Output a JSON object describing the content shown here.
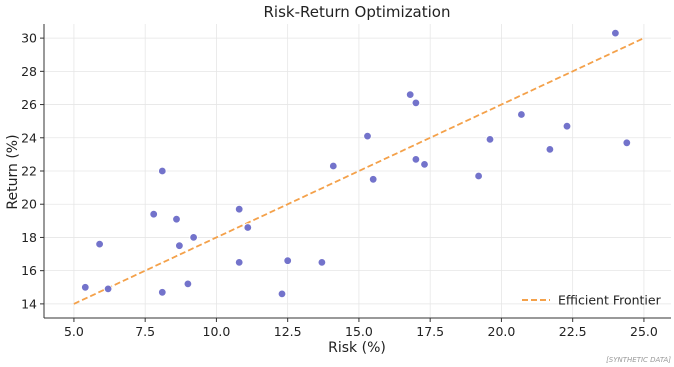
{
  "chart_data": {
    "type": "scatter",
    "title": "Risk-Return Optimization",
    "xlabel": "Risk (%)",
    "ylabel": "Return (%)",
    "xlim": [
      3.95,
      25.95
    ],
    "ylim": [
      13.15,
      30.85
    ],
    "x_ticks": [
      5.0,
      7.5,
      10.0,
      12.5,
      15.0,
      17.5,
      20.0,
      22.5,
      25.0
    ],
    "x_tick_labels": [
      "5.0",
      "7.5",
      "10.0",
      "12.5",
      "15.0",
      "17.5",
      "20.0",
      "22.5",
      "25.0"
    ],
    "y_ticks": [
      14,
      16,
      18,
      20,
      22,
      24,
      26,
      28,
      30
    ],
    "y_tick_labels": [
      "14",
      "16",
      "18",
      "20",
      "22",
      "24",
      "26",
      "28",
      "30"
    ],
    "grid": true,
    "legend_position": "bottom-right",
    "colors": {
      "points": "#6b6bc8",
      "frontier": "#f4a14a"
    },
    "points": [
      {
        "x": 5.4,
        "y": 15.0
      },
      {
        "x": 5.9,
        "y": 17.6
      },
      {
        "x": 6.2,
        "y": 14.9
      },
      {
        "x": 7.8,
        "y": 19.4
      },
      {
        "x": 8.1,
        "y": 22.0
      },
      {
        "x": 8.1,
        "y": 14.7
      },
      {
        "x": 8.6,
        "y": 19.1
      },
      {
        "x": 8.7,
        "y": 17.5
      },
      {
        "x": 9.0,
        "y": 15.2
      },
      {
        "x": 9.2,
        "y": 18.0
      },
      {
        "x": 10.8,
        "y": 19.7
      },
      {
        "x": 10.8,
        "y": 16.5
      },
      {
        "x": 11.1,
        "y": 18.6
      },
      {
        "x": 12.3,
        "y": 14.6
      },
      {
        "x": 12.5,
        "y": 16.6
      },
      {
        "x": 13.7,
        "y": 16.5
      },
      {
        "x": 14.1,
        "y": 22.3
      },
      {
        "x": 15.3,
        "y": 24.1
      },
      {
        "x": 15.5,
        "y": 21.5
      },
      {
        "x": 16.8,
        "y": 26.6
      },
      {
        "x": 17.0,
        "y": 22.7
      },
      {
        "x": 17.0,
        "y": 26.1
      },
      {
        "x": 17.3,
        "y": 22.4
      },
      {
        "x": 19.2,
        "y": 21.7
      },
      {
        "x": 19.6,
        "y": 23.9
      },
      {
        "x": 20.7,
        "y": 25.4
      },
      {
        "x": 21.7,
        "y": 23.3
      },
      {
        "x": 22.3,
        "y": 24.7
      },
      {
        "x": 24.0,
        "y": 30.3
      },
      {
        "x": 24.4,
        "y": 23.7
      }
    ],
    "series": [
      {
        "name": "Efficient Frontier",
        "type": "line",
        "style": "dashed",
        "x": [
          5.0,
          25.0
        ],
        "y": [
          14.0,
          30.0
        ]
      }
    ],
    "watermark": "[SYNTHETIC DATA]"
  }
}
